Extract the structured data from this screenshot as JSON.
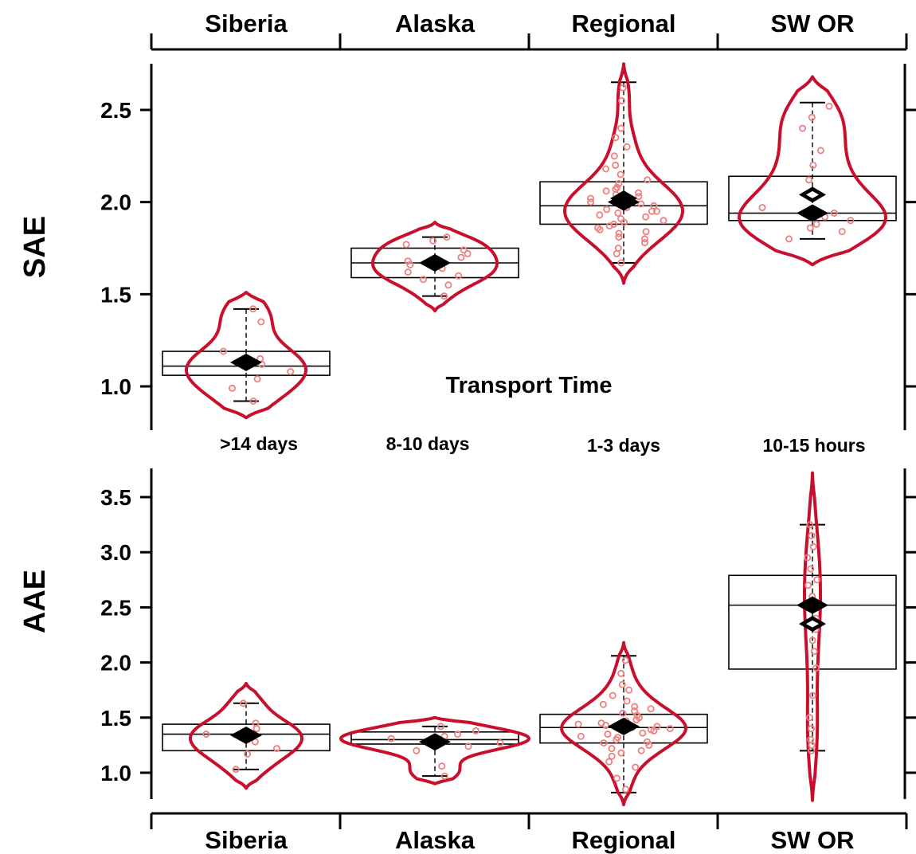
{
  "chart_data": [
    {
      "type": "violin",
      "panel": "top",
      "ylabel": "SAE",
      "ylim": [
        0.83,
        2.75
      ],
      "yticks": [
        1.0,
        1.5,
        2.0,
        2.5
      ],
      "ytick_labels": [
        "1.0",
        "1.5",
        "2.0",
        "2.5"
      ],
      "categories": [
        "Siberia",
        "Alaska",
        "Regional",
        "SW OR"
      ],
      "category_annotation_title": "Transport Time",
      "category_annotations": [
        ">14 days",
        "8-10 days",
        "1-3 days",
        "10-15 hours"
      ],
      "series": [
        {
          "category": "Siberia",
          "box": {
            "q1": 1.06,
            "median": 1.11,
            "q3": 1.19
          },
          "whisker": {
            "low": 0.92,
            "high": 1.42
          },
          "mean": 1.13,
          "violin_range": [
            0.83,
            1.51
          ],
          "points": [
            0.92,
            0.99,
            1.04,
            1.08,
            1.12,
            1.15,
            1.19,
            1.35,
            1.42
          ]
        },
        {
          "category": "Alaska",
          "box": {
            "q1": 1.59,
            "median": 1.67,
            "q3": 1.75
          },
          "whisker": {
            "low": 1.49,
            "high": 1.81
          },
          "mean": 1.67,
          "violin_range": [
            1.41,
            1.89
          ],
          "points": [
            1.49,
            1.55,
            1.58,
            1.6,
            1.62,
            1.64,
            1.66,
            1.68,
            1.7,
            1.72,
            1.74,
            1.77,
            1.79,
            1.81
          ]
        },
        {
          "category": "Regional",
          "box": {
            "q1": 1.88,
            "median": 1.98,
            "q3": 2.11
          },
          "whisker": {
            "low": 1.67,
            "high": 2.65
          },
          "mean": 2.0,
          "alt_mean": 2.02,
          "violin_range": [
            1.56,
            2.75
          ],
          "points": [
            1.67,
            1.72,
            1.75,
            1.78,
            1.8,
            1.81,
            1.83,
            1.84,
            1.85,
            1.86,
            1.87,
            1.88,
            1.89,
            1.9,
            1.91,
            1.92,
            1.93,
            1.94,
            1.95,
            1.95,
            1.96,
            1.97,
            1.98,
            1.99,
            2.0,
            2.01,
            2.02,
            2.03,
            2.04,
            2.05,
            2.06,
            2.07,
            2.08,
            2.1,
            2.12,
            2.15,
            2.18,
            2.2,
            2.25,
            2.3,
            2.35,
            2.4,
            2.55,
            2.62
          ]
        },
        {
          "category": "SW OR",
          "box": {
            "q1": 1.9,
            "median": 1.94,
            "q3": 2.14
          },
          "whisker": {
            "low": 1.8,
            "high": 2.54
          },
          "mean": 1.94,
          "alt_mean": 2.04,
          "violin_range": [
            1.66,
            2.68
          ],
          "points": [
            1.8,
            1.84,
            1.86,
            1.88,
            1.9,
            1.92,
            1.94,
            1.97,
            2.04,
            2.12,
            2.2,
            2.28,
            2.4,
            2.46,
            2.52
          ]
        }
      ]
    },
    {
      "type": "violin",
      "panel": "bottom",
      "ylabel": "AAE",
      "ylim": [
        0.75,
        3.72
      ],
      "yticks": [
        1.0,
        1.5,
        2.0,
        2.5,
        3.0,
        3.5
      ],
      "ytick_labels": [
        "1.0",
        "1.5",
        "2.0",
        "2.5",
        "3.0",
        "3.5"
      ],
      "categories": [
        "Siberia",
        "Alaska",
        "Regional",
        "SW OR"
      ],
      "series": [
        {
          "category": "Siberia",
          "box": {
            "q1": 1.2,
            "median": 1.35,
            "q3": 1.44
          },
          "whisker": {
            "low": 1.03,
            "high": 1.63
          },
          "mean": 1.34,
          "violin_range": [
            0.86,
            1.81
          ],
          "points": [
            1.03,
            1.17,
            1.22,
            1.28,
            1.35,
            1.4,
            1.45,
            1.63
          ]
        },
        {
          "category": "Alaska",
          "box": {
            "q1": 1.26,
            "median": 1.3,
            "q3": 1.37
          },
          "whisker": {
            "low": 0.97,
            "high": 1.42
          },
          "mean": 1.28,
          "violin_range": [
            0.9,
            1.5
          ],
          "points": [
            0.97,
            1.06,
            1.2,
            1.24,
            1.27,
            1.29,
            1.31,
            1.33,
            1.35,
            1.38,
            1.42
          ]
        },
        {
          "category": "Regional",
          "box": {
            "q1": 1.27,
            "median": 1.41,
            "q3": 1.53
          },
          "whisker": {
            "low": 0.82,
            "high": 2.06
          },
          "mean": 1.42,
          "violin_range": [
            0.71,
            2.18
          ],
          "points": [
            0.85,
            0.95,
            1.05,
            1.1,
            1.15,
            1.18,
            1.2,
            1.22,
            1.25,
            1.27,
            1.28,
            1.3,
            1.32,
            1.33,
            1.35,
            1.36,
            1.38,
            1.39,
            1.4,
            1.41,
            1.42,
            1.43,
            1.44,
            1.45,
            1.47,
            1.48,
            1.5,
            1.52,
            1.54,
            1.56,
            1.58,
            1.6,
            1.62,
            1.65,
            1.7,
            1.75,
            1.8,
            1.9,
            2.02
          ]
        },
        {
          "category": "SW OR",
          "box": {
            "q1": 1.94,
            "median": 2.52,
            "q3": 2.79
          },
          "whisker": {
            "low": 1.2,
            "high": 3.25
          },
          "mean": 2.52,
          "alt_mean": 2.35,
          "violin_range": [
            0.75,
            3.72
          ],
          "points": [
            1.2,
            1.25,
            1.3,
            1.4,
            1.5,
            1.7,
            1.95,
            2.1,
            2.2,
            2.3,
            2.4,
            2.5,
            2.55,
            2.6,
            2.7,
            2.75,
            2.85,
            2.95,
            3.05,
            3.15,
            3.25
          ]
        }
      ]
    }
  ]
}
